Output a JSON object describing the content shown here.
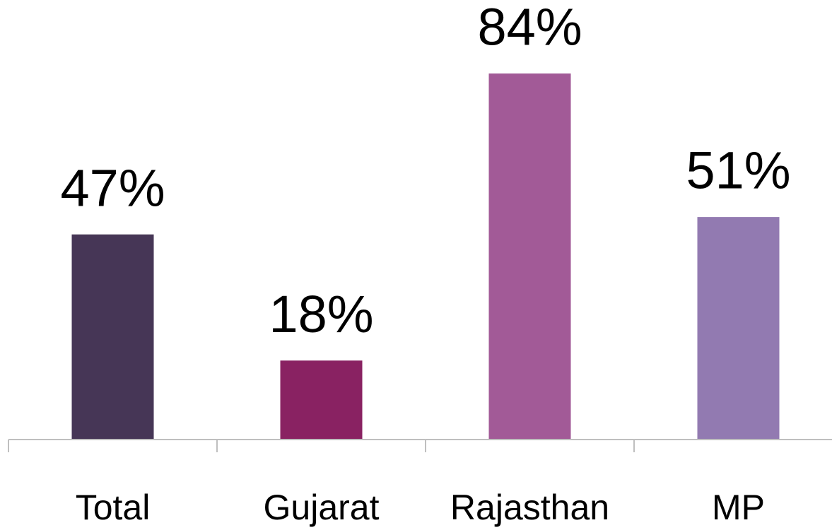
{
  "chart_data": {
    "type": "bar",
    "categories": [
      "Total",
      "Gujarat",
      "Rajasthan",
      "MP"
    ],
    "values": [
      47,
      18,
      84,
      51
    ],
    "value_labels": [
      "47%",
      "18%",
      "84%",
      "51%"
    ],
    "colors": [
      "#463656",
      "#892262",
      "#a25a97",
      "#927ab1"
    ]
  }
}
